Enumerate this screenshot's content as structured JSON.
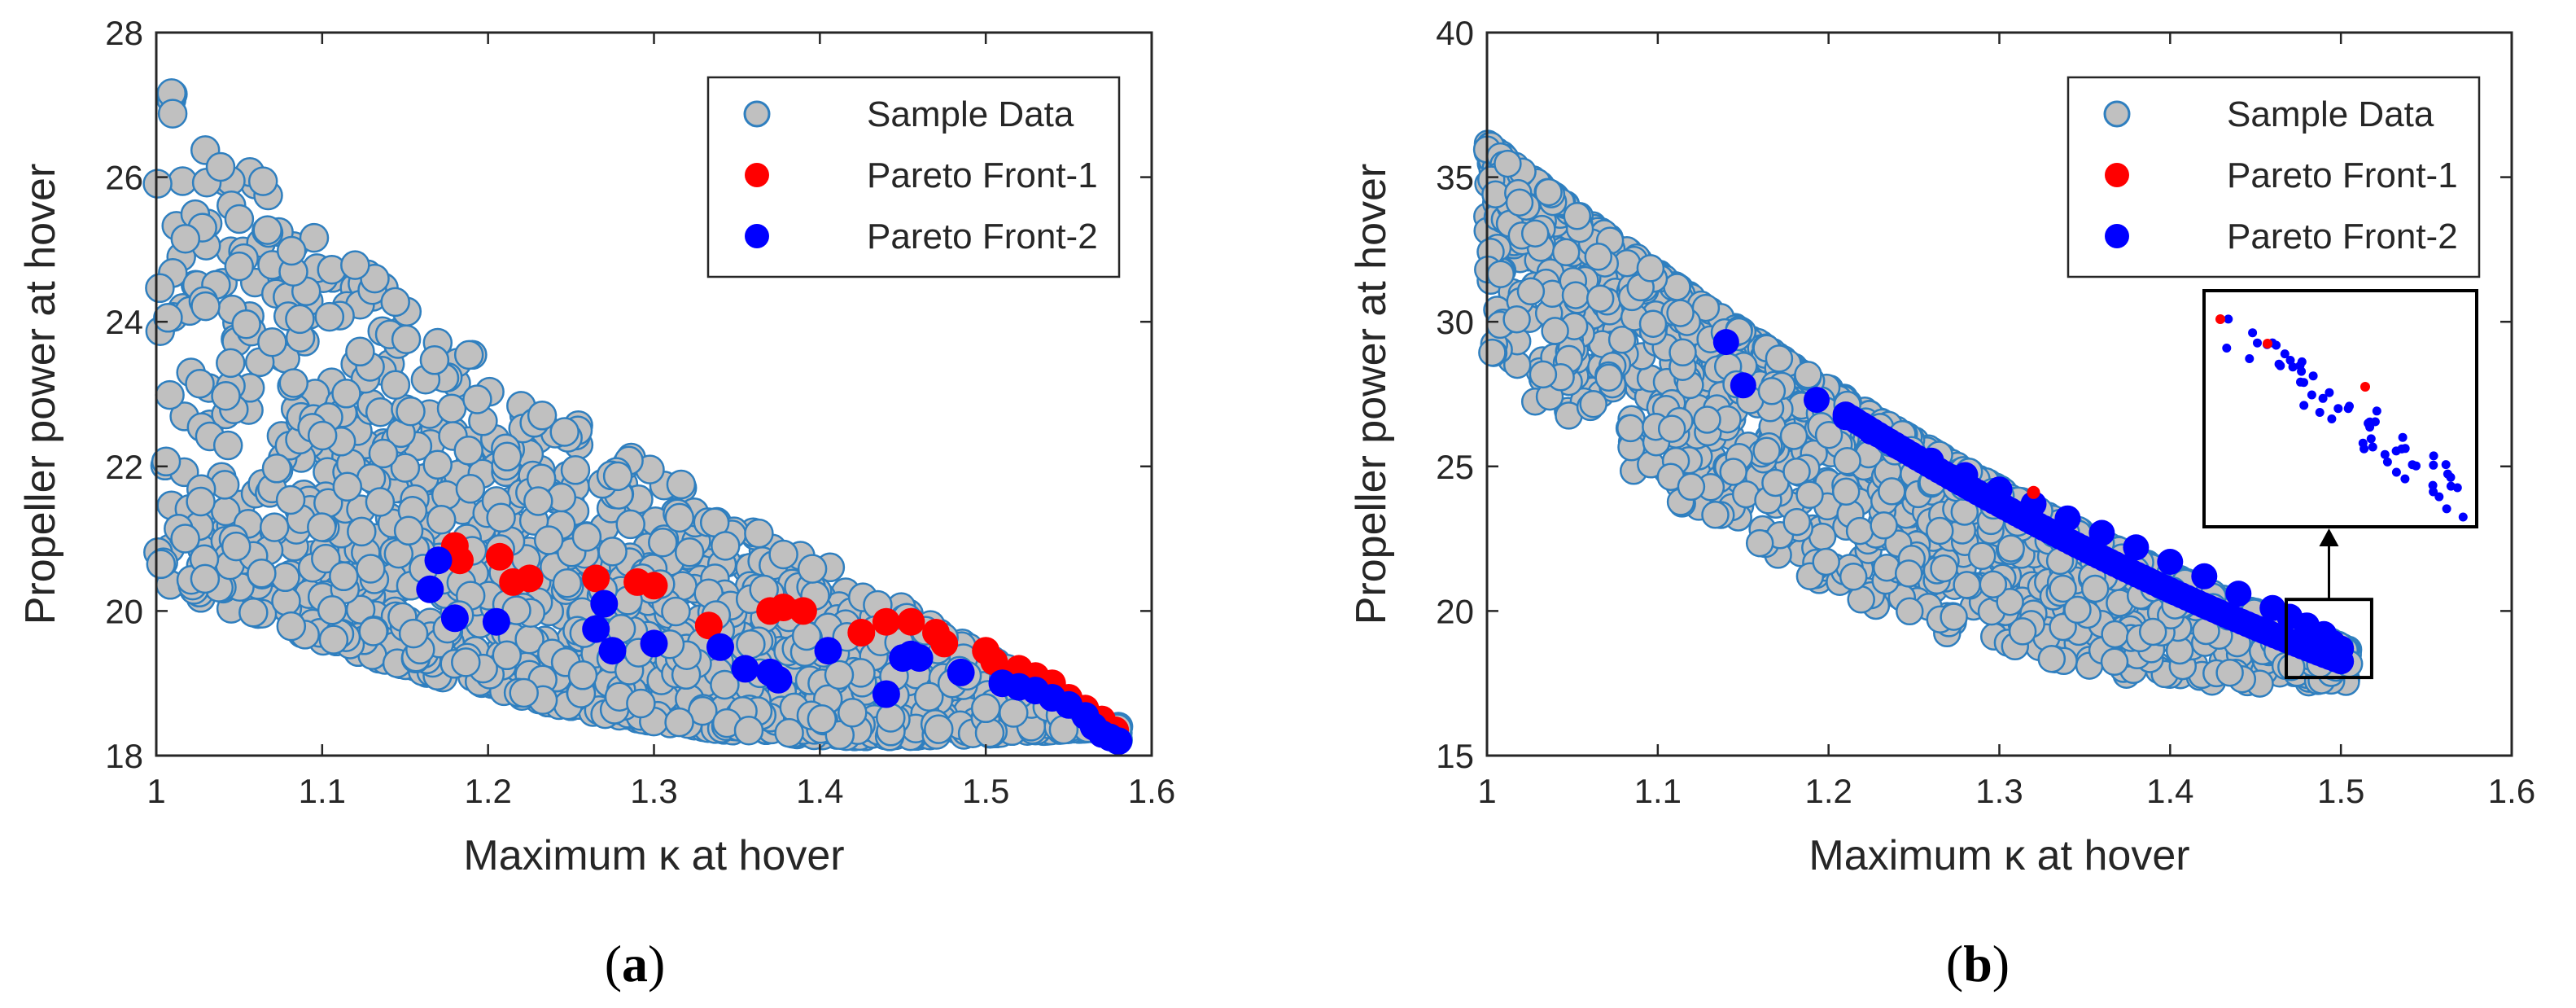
{
  "chart_data": [
    {
      "type": "scatter",
      "panel": "a",
      "xlabel": "Maximum κ at hover",
      "ylabel": "Propeller power at hover",
      "xlim": [
        1,
        1.6
      ],
      "ylim": [
        18,
        28
      ],
      "xticks": [
        "1",
        "1.1",
        "1.2",
        "1.3",
        "1.4",
        "1.5",
        "1.6"
      ],
      "yticks": [
        "18",
        "20",
        "22",
        "24",
        "26",
        "28"
      ],
      "legend": {
        "location": "top-right",
        "entries": [
          "Sample Data",
          "Pareto Front-1",
          "Pareto Front-2"
        ]
      },
      "colors": {
        "sample_fill": "#c0c0c0",
        "sample_edge": "#2f7fbf",
        "front1": "#ff0000",
        "front2": "#0000ff"
      },
      "series": [
        {
          "name": "Pareto Front-1",
          "x": [
            1.18,
            1.183,
            1.207,
            1.215,
            1.225,
            1.265,
            1.29,
            1.3,
            1.333,
            1.37,
            1.378,
            1.39,
            1.425,
            1.44,
            1.455,
            1.47,
            1.475,
            1.5,
            1.505,
            1.52,
            1.53,
            1.54,
            1.55,
            1.56,
            1.57,
            1.578
          ],
          "y": [
            20.9,
            20.7,
            20.75,
            20.4,
            20.45,
            20.45,
            20.4,
            20.35,
            19.8,
            20.0,
            20.05,
            20.0,
            19.7,
            19.85,
            19.85,
            19.7,
            19.55,
            19.45,
            19.3,
            19.2,
            19.1,
            19.0,
            18.8,
            18.65,
            18.5,
            18.35
          ]
        },
        {
          "name": "Pareto Front-2",
          "x": [
            1.165,
            1.17,
            1.18,
            1.205,
            1.265,
            1.27,
            1.275,
            1.3,
            1.34,
            1.355,
            1.37,
            1.375,
            1.405,
            1.44,
            1.45,
            1.455,
            1.46,
            1.485,
            1.51,
            1.52,
            1.53,
            1.54,
            1.55,
            1.56,
            1.565,
            1.57,
            1.575,
            1.58
          ],
          "y": [
            20.3,
            20.7,
            19.9,
            19.85,
            19.75,
            20.1,
            19.45,
            19.55,
            19.5,
            19.2,
            19.15,
            19.05,
            19.45,
            18.85,
            19.35,
            19.4,
            19.35,
            19.15,
            19.0,
            18.95,
            18.9,
            18.8,
            18.7,
            18.55,
            18.4,
            18.3,
            18.25,
            18.2
          ]
        }
      ]
    },
    {
      "type": "scatter",
      "panel": "b",
      "xlabel": "Maximum κ at hover",
      "ylabel": "Propeller power at hover",
      "xlim": [
        1,
        1.6
      ],
      "ylim": [
        15,
        40
      ],
      "xticks": [
        "1",
        "1.1",
        "1.2",
        "1.3",
        "1.4",
        "1.5",
        "1.6"
      ],
      "yticks": [
        "15",
        "20",
        "25",
        "30",
        "35",
        "40"
      ],
      "legend": {
        "location": "top-right",
        "entries": [
          "Sample Data",
          "Pareto Front-1",
          "Pareto Front-2"
        ]
      },
      "colors": {
        "sample_fill": "#c0c0c0",
        "sample_edge": "#2f7fbf",
        "front1": "#ff0000",
        "front2": "#0000ff"
      },
      "series": [
        {
          "name": "Pareto Front-1",
          "x": [
            1.32
          ],
          "y": [
            24.1
          ]
        },
        {
          "name": "Pareto Front-2",
          "x": [
            1.14,
            1.15,
            1.193,
            1.21,
            1.225,
            1.24,
            1.26,
            1.28,
            1.3,
            1.32,
            1.34,
            1.36,
            1.38,
            1.4,
            1.42,
            1.44,
            1.46,
            1.47,
            1.48,
            1.49,
            1.495,
            1.5
          ],
          "y": [
            29.3,
            27.8,
            27.3,
            26.7,
            26.2,
            25.7,
            25.2,
            24.7,
            24.2,
            23.7,
            23.2,
            22.7,
            22.2,
            21.7,
            21.2,
            20.6,
            20.1,
            19.8,
            19.5,
            19.2,
            18.9,
            18.7
          ]
        }
      ],
      "annotations": [
        "zoom inset of region near κ≈1.5, power≈19"
      ]
    }
  ]
}
